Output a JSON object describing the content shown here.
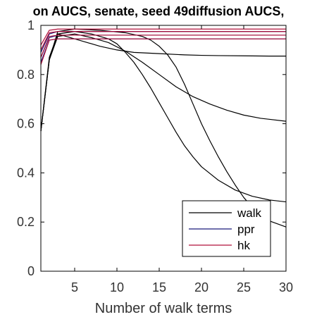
{
  "chart_data": {
    "type": "line",
    "title": "on AUCS, senate, seed 49diffusion AUCS,",
    "xlabel": "Number of walk terms",
    "ylabel": "",
    "xlim": [
      1,
      30
    ],
    "ylim": [
      0,
      1
    ],
    "xticks": [
      "5",
      "10",
      "15",
      "20",
      "25",
      "30"
    ],
    "yticks": [
      "0",
      "0.2",
      "0.4",
      "0.6",
      "0.8",
      "1"
    ],
    "grid": false,
    "legend_position": "bottom-right",
    "legend": [
      {
        "name": "walk",
        "color": "#000000"
      },
      {
        "name": "ppr",
        "color": "#1a1a7a"
      },
      {
        "name": "hk",
        "color": "#b0103a"
      }
    ],
    "series": [
      {
        "group": "walk",
        "color": "#000000",
        "x": [
          1,
          2,
          3,
          4,
          6,
          8,
          10,
          12,
          15,
          18,
          20,
          22,
          25,
          28,
          30
        ],
        "y": [
          0.57,
          0.87,
          0.965,
          0.955,
          0.935,
          0.915,
          0.9,
          0.89,
          0.885,
          0.88,
          0.878,
          0.877,
          0.876,
          0.875,
          0.875
        ]
      },
      {
        "group": "walk",
        "color": "#000000",
        "x": [
          1,
          2,
          3,
          5,
          7,
          9,
          11,
          13,
          15,
          17,
          19,
          21,
          23,
          25,
          27,
          30
        ],
        "y": [
          0.57,
          0.86,
          0.955,
          0.965,
          0.95,
          0.93,
          0.895,
          0.85,
          0.8,
          0.75,
          0.71,
          0.68,
          0.655,
          0.635,
          0.622,
          0.61
        ]
      },
      {
        "group": "walk",
        "color": "#000000",
        "x": [
          1,
          2,
          3,
          5,
          7,
          9,
          10,
          11,
          12,
          13,
          14,
          15,
          16,
          17,
          18,
          19,
          20,
          22,
          24,
          26,
          28,
          30
        ],
        "y": [
          0.57,
          0.86,
          0.965,
          0.975,
          0.965,
          0.945,
          0.925,
          0.89,
          0.85,
          0.8,
          0.745,
          0.685,
          0.625,
          0.565,
          0.51,
          0.465,
          0.425,
          0.37,
          0.33,
          0.305,
          0.29,
          0.282
        ]
      },
      {
        "group": "walk",
        "color": "#000000",
        "x": [
          1,
          2,
          3,
          5,
          8,
          11,
          13,
          14,
          15,
          16,
          17,
          18,
          19,
          20,
          21,
          22,
          23,
          24,
          25,
          26,
          27,
          28,
          30
        ],
        "y": [
          0.57,
          0.86,
          0.975,
          0.985,
          0.98,
          0.97,
          0.955,
          0.94,
          0.915,
          0.88,
          0.83,
          0.76,
          0.68,
          0.6,
          0.53,
          0.465,
          0.405,
          0.35,
          0.3,
          0.26,
          0.23,
          0.205,
          0.18
        ]
      },
      {
        "group": "ppr",
        "color": "#1a1a7a",
        "x": [
          1,
          2,
          3,
          30
        ],
        "y": [
          0.85,
          0.94,
          0.945,
          0.945
        ]
      },
      {
        "group": "ppr",
        "color": "#1a1a7a",
        "x": [
          1,
          2,
          3,
          30
        ],
        "y": [
          0.87,
          0.95,
          0.96,
          0.96
        ]
      },
      {
        "group": "ppr",
        "color": "#1a1a7a",
        "x": [
          1,
          2,
          3,
          30
        ],
        "y": [
          0.89,
          0.965,
          0.975,
          0.975
        ]
      },
      {
        "group": "hk",
        "color": "#b0103a",
        "x": [
          1,
          2,
          3,
          30
        ],
        "y": [
          0.84,
          0.94,
          0.945,
          0.945
        ]
      },
      {
        "group": "hk",
        "color": "#b0103a",
        "x": [
          1,
          2,
          3,
          30
        ],
        "y": [
          0.87,
          0.955,
          0.96,
          0.96
        ]
      },
      {
        "group": "hk",
        "color": "#b0103a",
        "x": [
          1,
          2,
          3,
          30
        ],
        "y": [
          0.9,
          0.97,
          0.975,
          0.975
        ]
      },
      {
        "group": "hk",
        "color": "#b0103a",
        "x": [
          1,
          2,
          3,
          30
        ],
        "y": [
          0.92,
          0.98,
          0.985,
          0.985
        ]
      }
    ]
  }
}
